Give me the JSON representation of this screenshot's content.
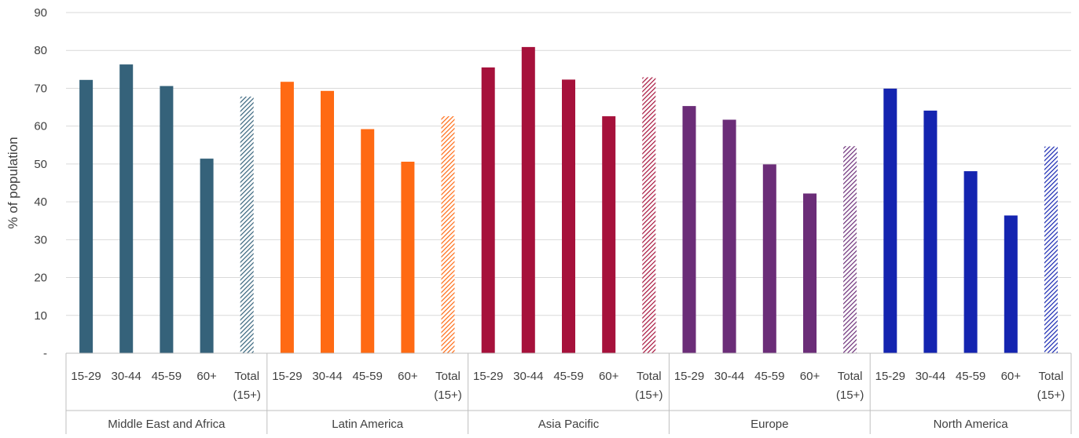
{
  "chart_data": {
    "type": "bar",
    "ylabel": "% of population",
    "ylim": [
      0,
      90
    ],
    "yticks": [
      "-",
      "10",
      "20",
      "30",
      "40",
      "50",
      "60",
      "70",
      "80",
      "90"
    ],
    "grid": true,
    "groups": [
      {
        "name": "Middle East and Africa",
        "color": "#35627a",
        "categories": [
          "15-29",
          "30-44",
          "45-59",
          "60+",
          "Total (15+)"
        ],
        "values": [
          72.2,
          76.3,
          70.6,
          51.4,
          67.8
        ]
      },
      {
        "name": "Latin America",
        "color": "#ff6a13",
        "categories": [
          "15-29",
          "30-44",
          "45-59",
          "60+",
          "Total (15+)"
        ],
        "values": [
          71.7,
          69.3,
          59.2,
          50.6,
          62.6
        ]
      },
      {
        "name": "Asia Pacific",
        "color": "#a6113b",
        "categories": [
          "15-29",
          "30-44",
          "45-59",
          "60+",
          "Total (15+)"
        ],
        "values": [
          75.5,
          80.9,
          72.3,
          62.6,
          72.9
        ]
      },
      {
        "name": "Europe",
        "color": "#6b2d78",
        "categories": [
          "15-29",
          "30-44",
          "45-59",
          "60+",
          "Total (15+)"
        ],
        "values": [
          65.3,
          61.7,
          49.9,
          42.2,
          54.7
        ]
      },
      {
        "name": "North America",
        "color": "#1424b0",
        "categories": [
          "15-29",
          "30-44",
          "45-59",
          "60+",
          "Total (15+)"
        ],
        "values": [
          69.9,
          64.1,
          48.1,
          36.4,
          54.6
        ]
      }
    ],
    "total_style": "hatched"
  }
}
